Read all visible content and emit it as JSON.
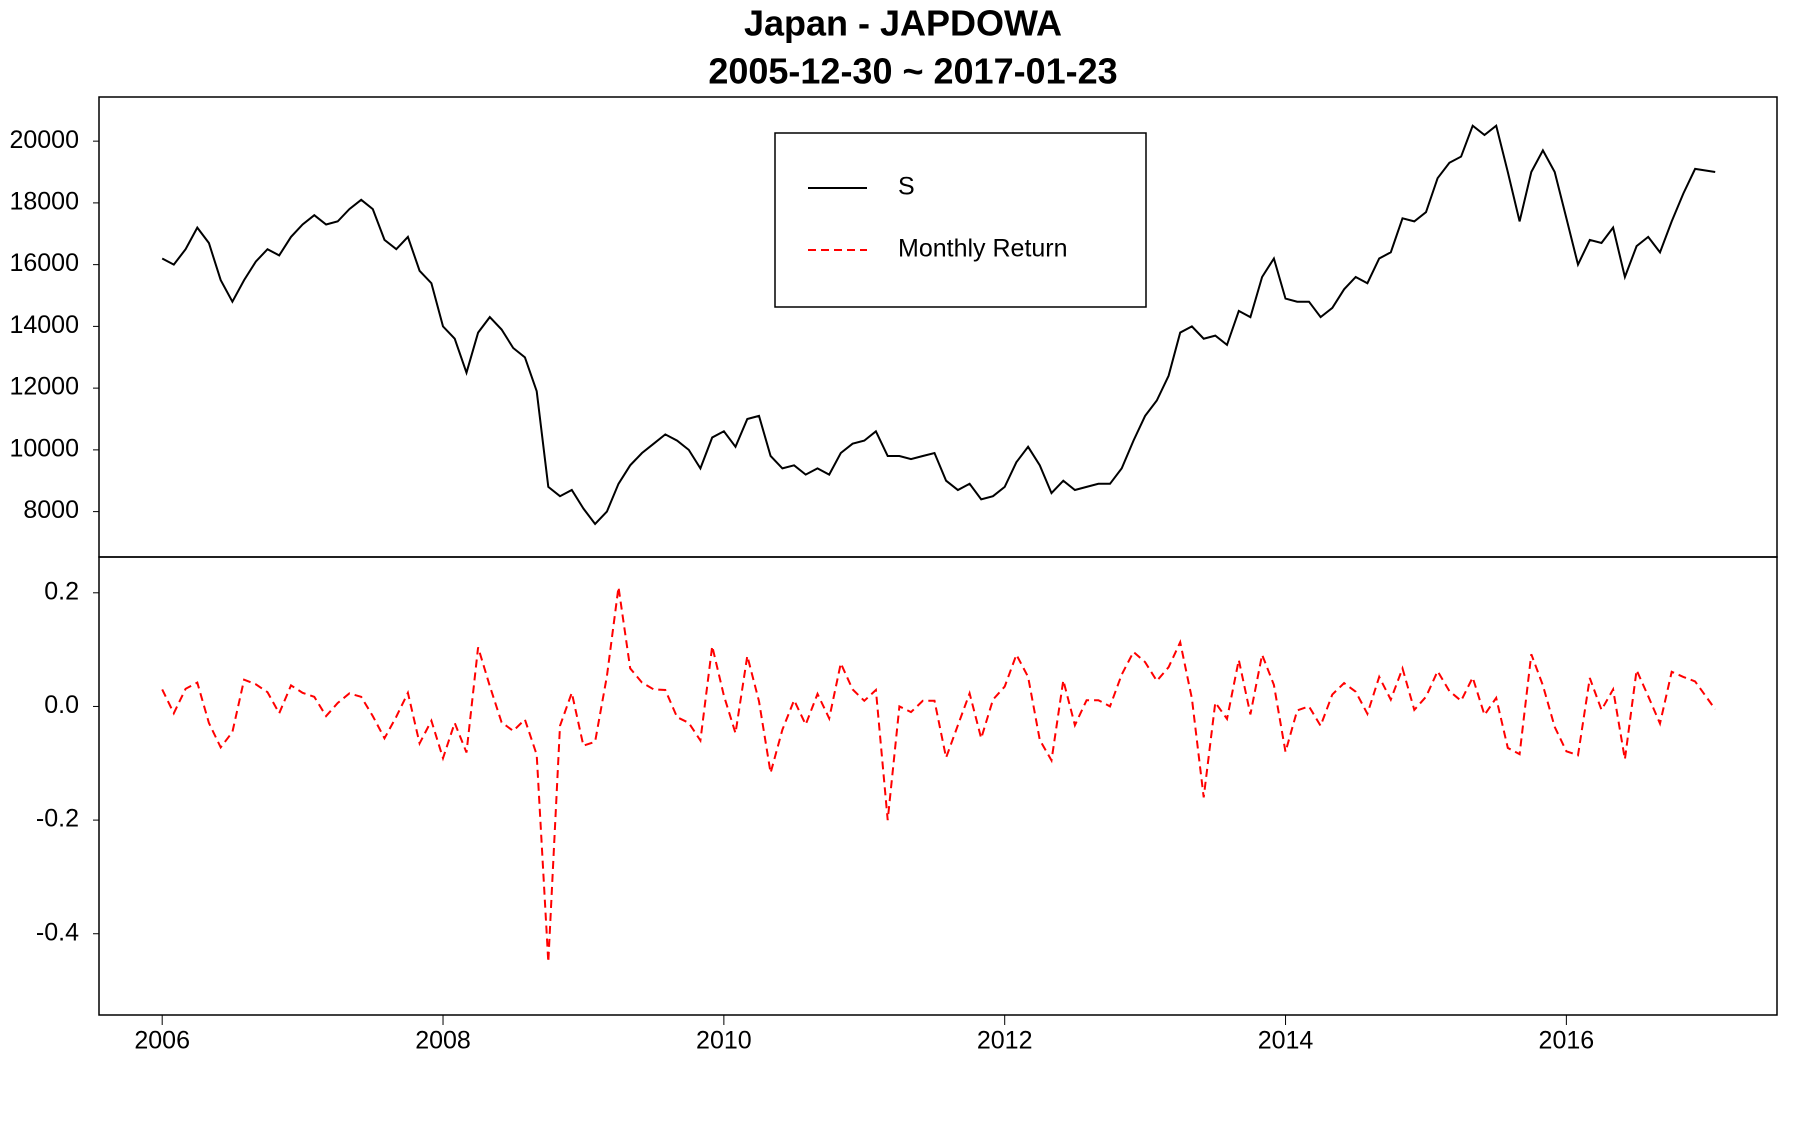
{
  "chart_data": [
    {
      "type": "line",
      "title": "Japan - JAPDOWA",
      "subtitle": "2005-12-30 ~ 2017-01-23",
      "x": [
        2006,
        2006.083,
        2006.167,
        2006.25,
        2006.333,
        2006.417,
        2006.5,
        2006.583,
        2006.667,
        2006.75,
        2006.833,
        2006.917,
        2007,
        2007.083,
        2007.167,
        2007.25,
        2007.333,
        2007.417,
        2007.5,
        2007.583,
        2007.667,
        2007.75,
        2007.833,
        2007.917,
        2008,
        2008.083,
        2008.167,
        2008.25,
        2008.333,
        2008.417,
        2008.5,
        2008.583,
        2008.667,
        2008.75,
        2008.833,
        2008.917,
        2009,
        2009.083,
        2009.167,
        2009.25,
        2009.333,
        2009.417,
        2009.5,
        2009.583,
        2009.667,
        2009.75,
        2009.833,
        2009.917,
        2010,
        2010.083,
        2010.167,
        2010.25,
        2010.333,
        2010.417,
        2010.5,
        2010.583,
        2010.667,
        2010.75,
        2010.833,
        2010.917,
        2011,
        2011.083,
        2011.167,
        2011.25,
        2011.333,
        2011.417,
        2011.5,
        2011.583,
        2011.667,
        2011.75,
        2011.833,
        2011.917,
        2012,
        2012.083,
        2012.167,
        2012.25,
        2012.333,
        2012.417,
        2012.5,
        2012.583,
        2012.667,
        2012.75,
        2012.833,
        2012.917,
        2013,
        2013.083,
        2013.167,
        2013.25,
        2013.333,
        2013.417,
        2013.5,
        2013.583,
        2013.667,
        2013.75,
        2013.833,
        2013.917,
        2014,
        2014.083,
        2014.167,
        2014.25,
        2014.333,
        2014.417,
        2014.5,
        2014.583,
        2014.667,
        2014.75,
        2014.833,
        2014.917,
        2015,
        2015.083,
        2015.167,
        2015.25,
        2015.333,
        2015.417,
        2015.5,
        2015.583,
        2015.667,
        2015.75,
        2015.833,
        2015.917,
        2016,
        2016.083,
        2016.167,
        2016.25,
        2016.333,
        2016.417,
        2016.5,
        2016.583,
        2016.667,
        2016.75,
        2016.833,
        2016.917,
        2017.06
      ],
      "series": [
        {
          "name": "S",
          "color": "#000000",
          "dash": false,
          "values": [
            16200,
            16000,
            16500,
            17200,
            16700,
            15500,
            14800,
            15500,
            16100,
            16500,
            16300,
            16900,
            17300,
            17600,
            17300,
            17400,
            17800,
            18100,
            17800,
            16800,
            16500,
            16900,
            15800,
            15400,
            14000,
            13600,
            12500,
            13800,
            14300,
            13900,
            13300,
            13000,
            11900,
            8800,
            8500,
            8700,
            8100,
            7600,
            8000,
            8900,
            9500,
            9900,
            10200,
            10500,
            10300,
            10000,
            9400,
            10400,
            10600,
            10100,
            11000,
            11100,
            9800,
            9400,
            9500,
            9200,
            9400,
            9200,
            9900,
            10200,
            10300,
            10600,
            9800,
            9800,
            9700,
            9800,
            9900,
            9000,
            8700,
            8900,
            8400,
            8500,
            8800,
            9600,
            10100,
            9500,
            8600,
            9000,
            8700,
            8800,
            8900,
            8900,
            9400,
            10300,
            11100,
            11600,
            12400,
            13800,
            14000,
            13600,
            13700,
            13400,
            14500,
            14300,
            15600,
            16200,
            14900,
            14800,
            14800,
            14300,
            14600,
            15200,
            15600,
            15400,
            16200,
            16400,
            17500,
            17400,
            17700,
            18800,
            19300,
            19500,
            20500,
            20200,
            20500,
            19000,
            17400,
            19000,
            19700,
            19000,
            17500,
            16000,
            16800,
            16700,
            17200,
            15600,
            16600,
            16900,
            16400,
            17400,
            18300,
            19100,
            19000
          ]
        }
      ],
      "xlim": [
        2005.55,
        2017.5
      ],
      "ylim": [
        6530,
        21430
      ],
      "yticks": [
        8000,
        10000,
        12000,
        14000,
        16000,
        18000,
        20000
      ]
    },
    {
      "type": "line",
      "x": [
        2006,
        2006.083,
        2006.167,
        2006.25,
        2006.333,
        2006.417,
        2006.5,
        2006.583,
        2006.667,
        2006.75,
        2006.833,
        2006.917,
        2007,
        2007.083,
        2007.167,
        2007.25,
        2007.333,
        2007.417,
        2007.5,
        2007.583,
        2007.667,
        2007.75,
        2007.833,
        2007.917,
        2008,
        2008.083,
        2008.167,
        2008.25,
        2008.333,
        2008.417,
        2008.5,
        2008.583,
        2008.667,
        2008.75,
        2008.833,
        2008.917,
        2009,
        2009.083,
        2009.167,
        2009.25,
        2009.333,
        2009.417,
        2009.5,
        2009.583,
        2009.667,
        2009.75,
        2009.833,
        2009.917,
        2010,
        2010.083,
        2010.167,
        2010.25,
        2010.333,
        2010.417,
        2010.5,
        2010.583,
        2010.667,
        2010.75,
        2010.833,
        2010.917,
        2011,
        2011.083,
        2011.167,
        2011.25,
        2011.333,
        2011.417,
        2011.5,
        2011.583,
        2011.667,
        2011.75,
        2011.833,
        2011.917,
        2012,
        2012.083,
        2012.167,
        2012.25,
        2012.333,
        2012.417,
        2012.5,
        2012.583,
        2012.667,
        2012.75,
        2012.833,
        2012.917,
        2013,
        2013.083,
        2013.167,
        2013.25,
        2013.333,
        2013.417,
        2013.5,
        2013.583,
        2013.667,
        2013.75,
        2013.833,
        2013.917,
        2014,
        2014.083,
        2014.167,
        2014.25,
        2014.333,
        2014.417,
        2014.5,
        2014.583,
        2014.667,
        2014.75,
        2014.833,
        2014.917,
        2015,
        2015.083,
        2015.167,
        2015.25,
        2015.333,
        2015.417,
        2015.5,
        2015.583,
        2015.667,
        2015.75,
        2015.833,
        2015.917,
        2016,
        2016.083,
        2016.167,
        2016.25,
        2016.333,
        2016.417,
        2016.5,
        2016.583,
        2016.667,
        2016.75,
        2016.833,
        2016.917,
        2017.06
      ],
      "series": [
        {
          "name": "Monthly Return",
          "color": "#ff0000",
          "dash": true,
          "values": [
            0.03,
            -0.012,
            0.031,
            0.042,
            -0.029,
            -0.072,
            -0.045,
            0.047,
            0.039,
            0.025,
            -0.012,
            0.037,
            0.024,
            0.017,
            -0.017,
            0.006,
            0.023,
            0.017,
            -0.017,
            -0.056,
            -0.018,
            0.024,
            -0.065,
            -0.025,
            -0.091,
            -0.029,
            -0.081,
            0.104,
            0.036,
            -0.028,
            -0.043,
            -0.023,
            -0.085,
            -0.45,
            -0.034,
            0.024,
            -0.069,
            -0.062,
            0.053,
            0.21,
            0.067,
            0.042,
            0.03,
            0.029,
            -0.019,
            -0.029,
            -0.06,
            0.106,
            0.019,
            -0.047,
            0.089,
            0.009,
            -0.117,
            -0.041,
            0.011,
            -0.032,
            0.022,
            -0.021,
            0.076,
            0.03,
            0.01,
            0.029,
            -0.2,
            0,
            -0.01,
            0.01,
            0.01,
            -0.09,
            -0.033,
            0.023,
            -0.056,
            0.012,
            0.035,
            0.091,
            0.052,
            -0.059,
            -0.095,
            0.046,
            -0.033,
            0.011,
            0.011,
            0,
            0.056,
            0.096,
            0.078,
            0.045,
            0.069,
            0.113,
            0.014,
            -0.16,
            0.007,
            -0.022,
            0.082,
            -0.014,
            0.091,
            0.038,
            -0.08,
            -0.007,
            0,
            -0.034,
            0.021,
            0.041,
            0.026,
            -0.013,
            0.052,
            0.012,
            0.067,
            -0.006,
            0.017,
            0.062,
            0.027,
            0.01,
            0.051,
            -0.015,
            0.015,
            -0.073,
            -0.084,
            0.092,
            0.037,
            -0.036,
            -0.079,
            -0.086,
            0.05,
            -0.006,
            0.03,
            -0.093,
            0.064,
            0.018,
            -0.03,
            0.061,
            0.052,
            0.044,
            -0.005
          ]
        }
      ],
      "xlim": [
        2005.55,
        2017.5
      ],
      "xticks": [
        2006,
        2008,
        2010,
        2012,
        2014,
        2016
      ],
      "ylim": [
        -0.543,
        0.263
      ],
      "yticks": [
        -0.4,
        -0.2,
        {
          "value": 0,
          "label": "0.0"
        },
        0.2
      ]
    }
  ]
}
